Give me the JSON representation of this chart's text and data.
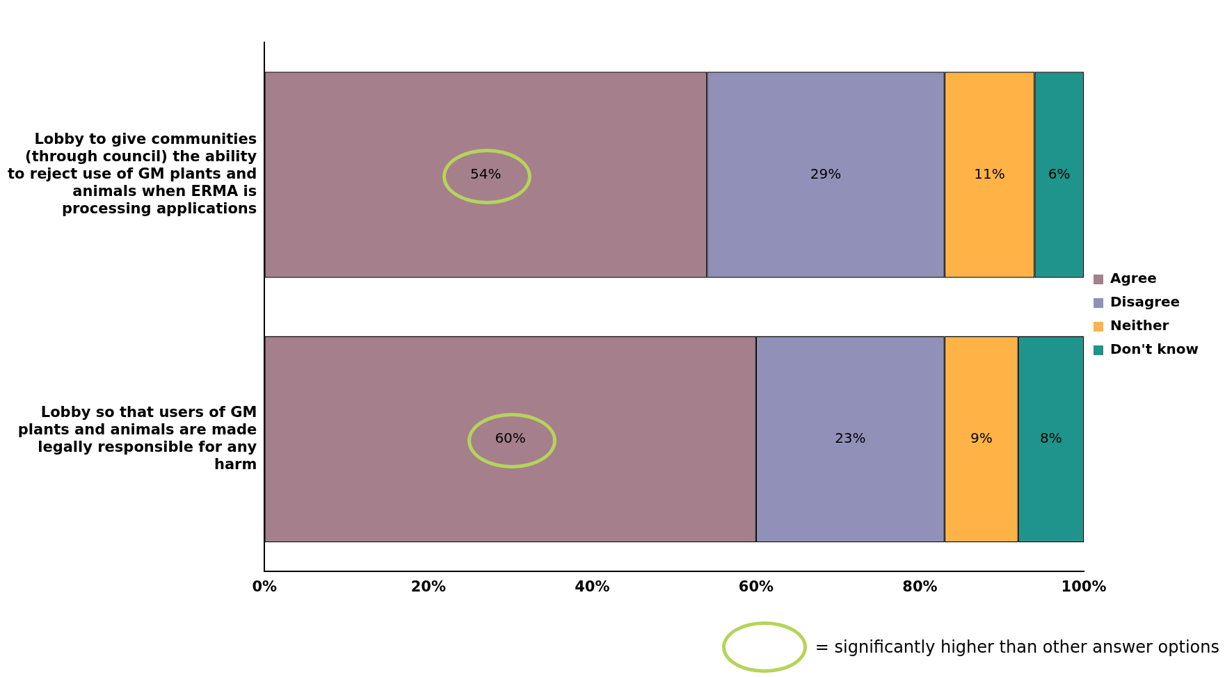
{
  "chart_data": {
    "type": "bar",
    "orientation": "horizontal",
    "stacked": true,
    "categories": [
      "Lobby to give communities (through council) the ability to reject use of GM plants and animals when ERMA is processing applications",
      "Lobby so that users of GM plants and animals are made legally responsible for any harm"
    ],
    "series": [
      {
        "name": "Agree",
        "color": "#a57f8c",
        "values": [
          54,
          60
        ],
        "value_labels": [
          "54%",
          "60%"
        ]
      },
      {
        "name": "Disagree",
        "color": "#9090b8",
        "values": [
          29,
          23
        ],
        "value_labels": [
          "29%",
          "23%"
        ]
      },
      {
        "name": "Neither",
        "color": "#ffb347",
        "values": [
          11,
          9
        ],
        "value_labels": [
          "11%",
          "9%"
        ]
      },
      {
        "name": "Don't know",
        "color": "#1e948c",
        "values": [
          6,
          8
        ],
        "value_labels": [
          "6%",
          "8%"
        ]
      }
    ],
    "xlim": [
      0,
      100
    ],
    "xticks": [
      {
        "value": 0,
        "label": "0%"
      },
      {
        "value": 20,
        "label": "20%"
      },
      {
        "value": 40,
        "label": "40%"
      },
      {
        "value": 60,
        "label": "60%"
      },
      {
        "value": 80,
        "label": "80%"
      },
      {
        "value": 100,
        "label": "100%"
      }
    ],
    "grid": false,
    "legend": "right",
    "annotations": [
      "= significantly higher than other answer options"
    ]
  }
}
